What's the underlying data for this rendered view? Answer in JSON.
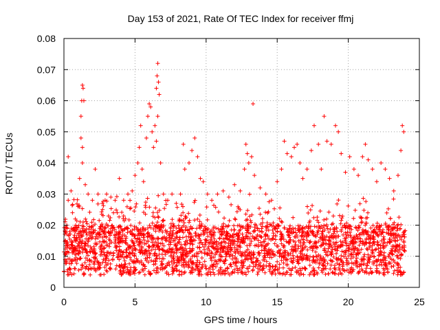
{
  "chart_data": {
    "type": "scatter",
    "title": "Day 153 of 2021, Rate Of TEC Index for receiver ffmj",
    "xlabel": "GPS time / hours",
    "ylabel": "ROTI / TECUs",
    "xlim": [
      0,
      25
    ],
    "ylim": [
      0,
      0.08
    ],
    "x_ticks": [
      "0",
      "5",
      "10",
      "15",
      "20",
      "25"
    ],
    "y_ticks": [
      "0",
      "0.01",
      "0.02",
      "0.03",
      "0.04",
      "0.05",
      "0.06",
      "0.07",
      "0.08"
    ],
    "grid": true,
    "marker": "+",
    "color": "#ff0000",
    "series": [
      {
        "name": "ROTI",
        "points": [
          [
            0.1,
            0.015
          ],
          [
            0.2,
            0.02
          ],
          [
            0.3,
            0.028
          ],
          [
            0.3,
            0.042
          ],
          [
            0.5,
            0.031
          ],
          [
            0.6,
            0.024
          ],
          [
            0.8,
            0.022
          ],
          [
            1.0,
            0.026
          ],
          [
            1.1,
            0.035
          ],
          [
            1.2,
            0.048
          ],
          [
            1.2,
            0.055
          ],
          [
            1.25,
            0.06
          ],
          [
            1.3,
            0.065
          ],
          [
            1.35,
            0.064
          ],
          [
            1.4,
            0.06
          ],
          [
            1.3,
            0.045
          ],
          [
            1.3,
            0.04
          ],
          [
            1.5,
            0.033
          ],
          [
            1.7,
            0.03
          ],
          [
            2.0,
            0.028
          ],
          [
            2.2,
            0.038
          ],
          [
            2.4,
            0.03
          ],
          [
            2.7,
            0.027
          ],
          [
            3.0,
            0.03
          ],
          [
            3.3,
            0.029
          ],
          [
            3.6,
            0.028
          ],
          [
            3.9,
            0.035
          ],
          [
            4.2,
            0.028
          ],
          [
            4.5,
            0.03
          ],
          [
            4.8,
            0.031
          ],
          [
            5.0,
            0.036
          ],
          [
            5.2,
            0.04
          ],
          [
            5.3,
            0.045
          ],
          [
            5.4,
            0.052
          ],
          [
            5.5,
            0.038
          ],
          [
            5.6,
            0.034
          ],
          [
            5.8,
            0.048
          ],
          [
            5.9,
            0.055
          ],
          [
            6.0,
            0.059
          ],
          [
            6.1,
            0.058
          ],
          [
            6.2,
            0.05
          ],
          [
            6.3,
            0.045
          ],
          [
            6.4,
            0.052
          ],
          [
            6.5,
            0.064
          ],
          [
            6.55,
            0.068
          ],
          [
            6.6,
            0.072
          ],
          [
            6.65,
            0.066
          ],
          [
            6.7,
            0.062
          ],
          [
            6.6,
            0.055
          ],
          [
            6.5,
            0.047
          ],
          [
            6.8,
            0.04
          ],
          [
            7.0,
            0.03
          ],
          [
            7.3,
            0.028
          ],
          [
            7.6,
            0.03
          ],
          [
            7.9,
            0.027
          ],
          [
            8.2,
            0.03
          ],
          [
            8.4,
            0.046
          ],
          [
            8.5,
            0.038
          ],
          [
            8.8,
            0.04
          ],
          [
            9.0,
            0.044
          ],
          [
            9.2,
            0.048
          ],
          [
            9.4,
            0.042
          ],
          [
            9.6,
            0.035
          ],
          [
            9.8,
            0.034
          ],
          [
            10.1,
            0.03
          ],
          [
            10.4,
            0.028
          ],
          [
            10.8,
            0.03
          ],
          [
            11.2,
            0.031
          ],
          [
            11.6,
            0.029
          ],
          [
            12.0,
            0.033
          ],
          [
            12.4,
            0.031
          ],
          [
            12.7,
            0.038
          ],
          [
            12.8,
            0.046
          ],
          [
            12.9,
            0.043
          ],
          [
            13.0,
            0.04
          ],
          [
            13.2,
            0.042
          ],
          [
            13.3,
            0.059
          ],
          [
            13.4,
            0.036
          ],
          [
            13.8,
            0.032
          ],
          [
            14.2,
            0.03
          ],
          [
            14.6,
            0.028
          ],
          [
            15.0,
            0.034
          ],
          [
            15.3,
            0.038
          ],
          [
            15.5,
            0.047
          ],
          [
            15.7,
            0.043
          ],
          [
            16.0,
            0.042
          ],
          [
            16.2,
            0.045
          ],
          [
            16.4,
            0.046
          ],
          [
            16.6,
            0.04
          ],
          [
            16.8,
            0.035
          ],
          [
            17.1,
            0.038
          ],
          [
            17.4,
            0.044
          ],
          [
            17.6,
            0.052
          ],
          [
            17.9,
            0.046
          ],
          [
            18.1,
            0.038
          ],
          [
            18.3,
            0.055
          ],
          [
            18.5,
            0.047
          ],
          [
            18.8,
            0.046
          ],
          [
            19.1,
            0.052
          ],
          [
            19.3,
            0.05
          ],
          [
            19.5,
            0.043
          ],
          [
            19.8,
            0.037
          ],
          [
            20.1,
            0.042
          ],
          [
            20.4,
            0.038
          ],
          [
            20.7,
            0.036
          ],
          [
            21.0,
            0.042
          ],
          [
            21.2,
            0.046
          ],
          [
            21.4,
            0.041
          ],
          [
            21.7,
            0.038
          ],
          [
            22.0,
            0.034
          ],
          [
            22.3,
            0.04
          ],
          [
            22.6,
            0.038
          ],
          [
            22.9,
            0.035
          ],
          [
            23.2,
            0.031
          ],
          [
            23.5,
            0.036
          ],
          [
            23.7,
            0.044
          ],
          [
            23.8,
            0.052
          ],
          [
            23.9,
            0.05
          ]
        ]
      }
    ]
  }
}
